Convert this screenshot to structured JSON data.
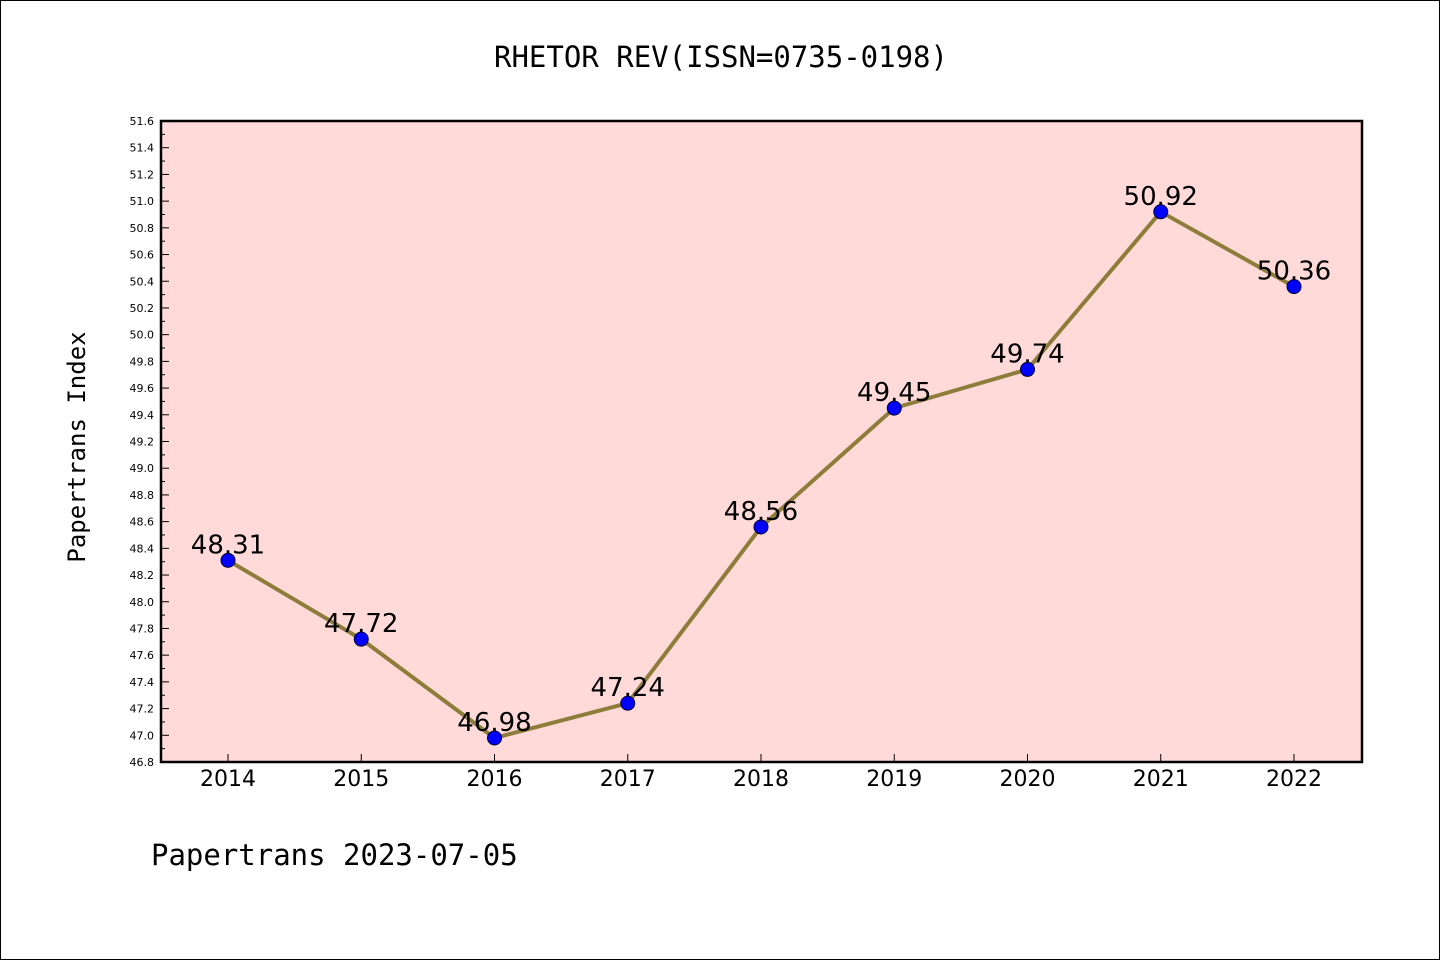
{
  "chart_data": {
    "type": "line",
    "title": "RHETOR REV(ISSN=0735-0198)",
    "xlabel": "",
    "ylabel": "Papertrans Index",
    "categories": [
      "2014",
      "2015",
      "2016",
      "2017",
      "2018",
      "2019",
      "2020",
      "2021",
      "2022"
    ],
    "values": [
      48.31,
      47.72,
      46.98,
      47.24,
      48.56,
      49.45,
      49.74,
      50.92,
      50.36
    ],
    "data_labels": [
      "48.31",
      "47.72",
      "46.98",
      "47.24",
      "48.56",
      "49.45",
      "49.74",
      "50.92",
      "50.36"
    ],
    "ylim": [
      46.8,
      51.6
    ],
    "yticks": [
      "46.8",
      "47.0",
      "47.2",
      "47.4",
      "47.6",
      "47.8",
      "48.0",
      "48.2",
      "48.4",
      "48.6",
      "48.8",
      "49.0",
      "49.2",
      "49.4",
      "49.6",
      "49.8",
      "50.0",
      "50.2",
      "50.4",
      "50.6",
      "50.8",
      "51.0",
      "51.2",
      "51.4",
      "51.6"
    ],
    "grid": false,
    "legend": "none",
    "colors": {
      "plot_background": "#FFDAD9",
      "line": "#8E7D3A",
      "marker": "#0000FF"
    }
  },
  "footer": {
    "text": "Papertrans 2023-07-05"
  }
}
